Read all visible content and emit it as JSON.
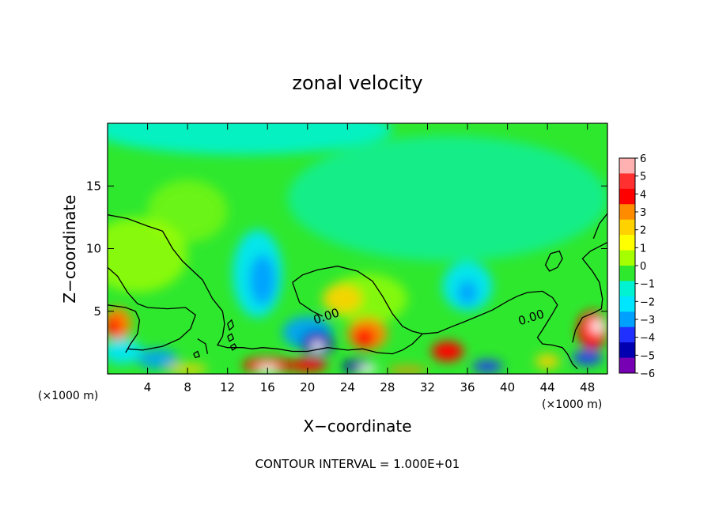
{
  "chart_data": {
    "type": "heatmap",
    "title": "zonal velocity",
    "xlabel": "X−coordinate",
    "ylabel": "Z−coordinate",
    "x_unit": "(×1000 m)",
    "x_unit_right": "(×1000 m)",
    "xlim": [
      0,
      50
    ],
    "ylim": [
      0,
      20
    ],
    "x_ticks": [
      4,
      8,
      12,
      16,
      20,
      24,
      28,
      32,
      36,
      40,
      44,
      48
    ],
    "y_ticks": [
      5,
      10,
      15
    ],
    "colorbar": {
      "ticks": [
        6,
        5,
        4,
        3,
        2,
        1,
        0,
        -1,
        -2,
        -3,
        -4,
        -5,
        -6
      ],
      "tick_labels": [
        "6",
        "5",
        "4",
        "3",
        "2",
        "1",
        "0",
        "−1",
        "−2",
        "−3",
        "−4",
        "−5",
        "−6"
      ],
      "colors": [
        "#ffb0b0",
        "#ff3030",
        "#ff0000",
        "#ff8c00",
        "#ffd200",
        "#ffff00",
        "#a6ff00",
        "#2ee82e",
        "#00f2d2",
        "#00e6ff",
        "#00a0ff",
        "#2030ff",
        "#0000b0",
        "#7800b4"
      ]
    },
    "contour_labels": [
      {
        "x": 22.0,
        "z": 4.3,
        "text": "0.00"
      },
      {
        "x": 42.5,
        "z": 4.2,
        "text": "0.00"
      }
    ],
    "note": "CONTOUR INTERVAL = 1.000E+01"
  }
}
